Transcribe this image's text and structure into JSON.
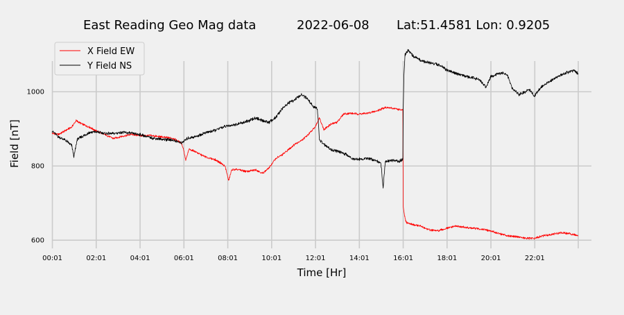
{
  "chart_data": {
    "type": "line",
    "title": {
      "station": "East Reading Geo Mag data",
      "date": "2022-06-08",
      "location": "Lat:51.4581  Lon: 0.9205"
    },
    "xlabel": "Time  [Hr]",
    "ylabel": "Field  [nT]",
    "xlim": [
      0.0,
      24.6
    ],
    "ylim": [
      578,
      1150
    ],
    "x_unit": "hours since 00:00",
    "xtick_values": [
      0.0167,
      2.0167,
      4.0167,
      6.0167,
      8.0167,
      10.0167,
      12.0167,
      14.0167,
      16.0167,
      18.0167,
      20.0167,
      22.0167,
      24.0
    ],
    "xtick_labels": [
      "00:01",
      "02:01",
      "04:01",
      "06:01",
      "08:01",
      "10:01",
      "12:01",
      "14:01",
      "16:01",
      "18:01",
      "20:01",
      "22:01",
      ""
    ],
    "yticks": [
      600,
      800,
      1000
    ],
    "ytick_labels": [
      "600",
      "800",
      "1000"
    ],
    "grid": true,
    "legend_position": "top-left",
    "series": [
      {
        "name": "X Field EW",
        "color": "#ff0000",
        "points": [
          [
            0.0,
            888
          ],
          [
            0.3,
            885
          ],
          [
            0.6,
            895
          ],
          [
            0.9,
            905
          ],
          [
            1.1,
            922
          ],
          [
            1.4,
            912
          ],
          [
            1.7,
            905
          ],
          [
            2.0,
            895
          ],
          [
            2.4,
            885
          ],
          [
            2.8,
            874
          ],
          [
            3.2,
            880
          ],
          [
            3.6,
            885
          ],
          [
            4.0,
            882
          ],
          [
            4.5,
            882
          ],
          [
            5.0,
            878
          ],
          [
            5.5,
            875
          ],
          [
            5.9,
            862
          ],
          [
            6.0,
            845
          ],
          [
            6.1,
            815
          ],
          [
            6.25,
            845
          ],
          [
            6.5,
            840
          ],
          [
            6.8,
            830
          ],
          [
            7.1,
            822
          ],
          [
            7.4,
            818
          ],
          [
            7.7,
            808
          ],
          [
            7.9,
            798
          ],
          [
            8.0,
            775
          ],
          [
            8.05,
            760
          ],
          [
            8.2,
            790
          ],
          [
            8.5,
            790
          ],
          [
            8.9,
            785
          ],
          [
            9.3,
            790
          ],
          [
            9.6,
            780
          ],
          [
            9.9,
            795
          ],
          [
            10.2,
            820
          ],
          [
            10.5,
            830
          ],
          [
            10.8,
            845
          ],
          [
            11.1,
            860
          ],
          [
            11.4,
            870
          ],
          [
            11.7,
            885
          ],
          [
            12.0,
            905
          ],
          [
            12.2,
            930
          ],
          [
            12.4,
            898
          ],
          [
            12.7,
            912
          ],
          [
            13.0,
            918
          ],
          [
            13.3,
            940
          ],
          [
            13.6,
            942
          ],
          [
            14.0,
            940
          ],
          [
            14.4,
            942
          ],
          [
            14.8,
            948
          ],
          [
            15.2,
            958
          ],
          [
            15.6,
            955
          ],
          [
            16.0,
            950
          ],
          [
            16.02,
            690
          ],
          [
            16.08,
            665
          ],
          [
            16.15,
            648
          ],
          [
            16.4,
            643
          ],
          [
            16.8,
            638
          ],
          [
            17.2,
            628
          ],
          [
            17.6,
            625
          ],
          [
            18.0,
            632
          ],
          [
            18.4,
            638
          ],
          [
            18.8,
            635
          ],
          [
            19.2,
            632
          ],
          [
            19.6,
            630
          ],
          [
            20.0,
            625
          ],
          [
            20.4,
            618
          ],
          [
            20.8,
            612
          ],
          [
            21.2,
            610
          ],
          [
            21.6,
            605
          ],
          [
            22.0,
            605
          ],
          [
            22.4,
            612
          ],
          [
            22.8,
            616
          ],
          [
            23.2,
            620
          ],
          [
            23.6,
            618
          ],
          [
            24.0,
            612
          ]
        ]
      },
      {
        "name": "Y Field NS",
        "color": "#000000",
        "points": [
          [
            0.0,
            895
          ],
          [
            0.3,
            878
          ],
          [
            0.6,
            870
          ],
          [
            0.9,
            855
          ],
          [
            1.0,
            825
          ],
          [
            1.15,
            872
          ],
          [
            1.4,
            880
          ],
          [
            1.7,
            890
          ],
          [
            2.0,
            892
          ],
          [
            2.4,
            888
          ],
          [
            2.8,
            887
          ],
          [
            3.2,
            891
          ],
          [
            3.6,
            888
          ],
          [
            4.0,
            885
          ],
          [
            4.5,
            876
          ],
          [
            5.0,
            872
          ],
          [
            5.5,
            870
          ],
          [
            5.9,
            862
          ],
          [
            6.2,
            875
          ],
          [
            6.6,
            880
          ],
          [
            7.0,
            890
          ],
          [
            7.4,
            895
          ],
          [
            7.8,
            905
          ],
          [
            8.2,
            910
          ],
          [
            8.6,
            915
          ],
          [
            9.0,
            922
          ],
          [
            9.3,
            930
          ],
          [
            9.6,
            922
          ],
          [
            9.9,
            918
          ],
          [
            10.2,
            930
          ],
          [
            10.5,
            955
          ],
          [
            10.8,
            970
          ],
          [
            11.1,
            980
          ],
          [
            11.4,
            992
          ],
          [
            11.7,
            978
          ],
          [
            11.9,
            960
          ],
          [
            12.1,
            955
          ],
          [
            12.2,
            870
          ],
          [
            12.4,
            858
          ],
          [
            12.7,
            845
          ],
          [
            13.0,
            840
          ],
          [
            13.4,
            832
          ],
          [
            13.7,
            820
          ],
          [
            14.0,
            818
          ],
          [
            14.4,
            820
          ],
          [
            14.8,
            815
          ],
          [
            15.0,
            808
          ],
          [
            15.1,
            740
          ],
          [
            15.2,
            812
          ],
          [
            15.5,
            815
          ],
          [
            15.8,
            812
          ],
          [
            16.0,
            818
          ],
          [
            16.02,
            960
          ],
          [
            16.05,
            1045
          ],
          [
            16.1,
            1100
          ],
          [
            16.25,
            1112
          ],
          [
            16.5,
            1095
          ],
          [
            16.9,
            1082
          ],
          [
            17.3,
            1078
          ],
          [
            17.7,
            1072
          ],
          [
            18.0,
            1058
          ],
          [
            18.4,
            1050
          ],
          [
            18.8,
            1042
          ],
          [
            19.2,
            1038
          ],
          [
            19.5,
            1032
          ],
          [
            19.8,
            1012
          ],
          [
            20.0,
            1040
          ],
          [
            20.3,
            1048
          ],
          [
            20.6,
            1052
          ],
          [
            20.8,
            1040
          ],
          [
            21.0,
            1008
          ],
          [
            21.3,
            992
          ],
          [
            21.5,
            998
          ],
          [
            21.8,
            1005
          ],
          [
            22.0,
            988
          ],
          [
            22.3,
            1012
          ],
          [
            22.6,
            1025
          ],
          [
            22.9,
            1035
          ],
          [
            23.2,
            1045
          ],
          [
            23.5,
            1052
          ],
          [
            23.8,
            1058
          ],
          [
            24.0,
            1048
          ]
        ]
      }
    ]
  }
}
